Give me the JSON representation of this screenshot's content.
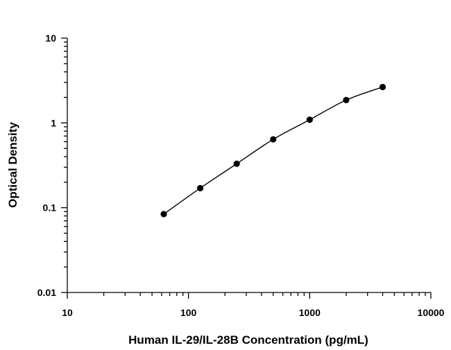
{
  "chart_data": {
    "type": "scatter",
    "title": "",
    "xlabel": "Human IL-29/IL-28B Concentration (pg/mL)",
    "ylabel": "Optical Density",
    "x_scale": "log",
    "y_scale": "log",
    "xlim": [
      10,
      10000
    ],
    "ylim": [
      0.01,
      10
    ],
    "x_ticks": [
      {
        "value": 10,
        "label": "10"
      },
      {
        "value": 100,
        "label": "100"
      },
      {
        "value": 1000,
        "label": "1000"
      },
      {
        "value": 10000,
        "label": "10000"
      }
    ],
    "y_ticks": [
      {
        "value": 0.01,
        "label": "0.01"
      },
      {
        "value": 0.1,
        "label": "0.1"
      },
      {
        "value": 1,
        "label": "1"
      },
      {
        "value": 10,
        "label": "10"
      }
    ],
    "grid": false,
    "legend": "none",
    "marker_color": "#000000",
    "line_color": "#000000",
    "series": [
      {
        "x": [
          62.5,
          125,
          250,
          500,
          1000,
          2000,
          4000
        ],
        "y": [
          0.084,
          0.17,
          0.33,
          0.64,
          1.09,
          1.86,
          2.65
        ],
        "fit_curve": true
      }
    ]
  }
}
